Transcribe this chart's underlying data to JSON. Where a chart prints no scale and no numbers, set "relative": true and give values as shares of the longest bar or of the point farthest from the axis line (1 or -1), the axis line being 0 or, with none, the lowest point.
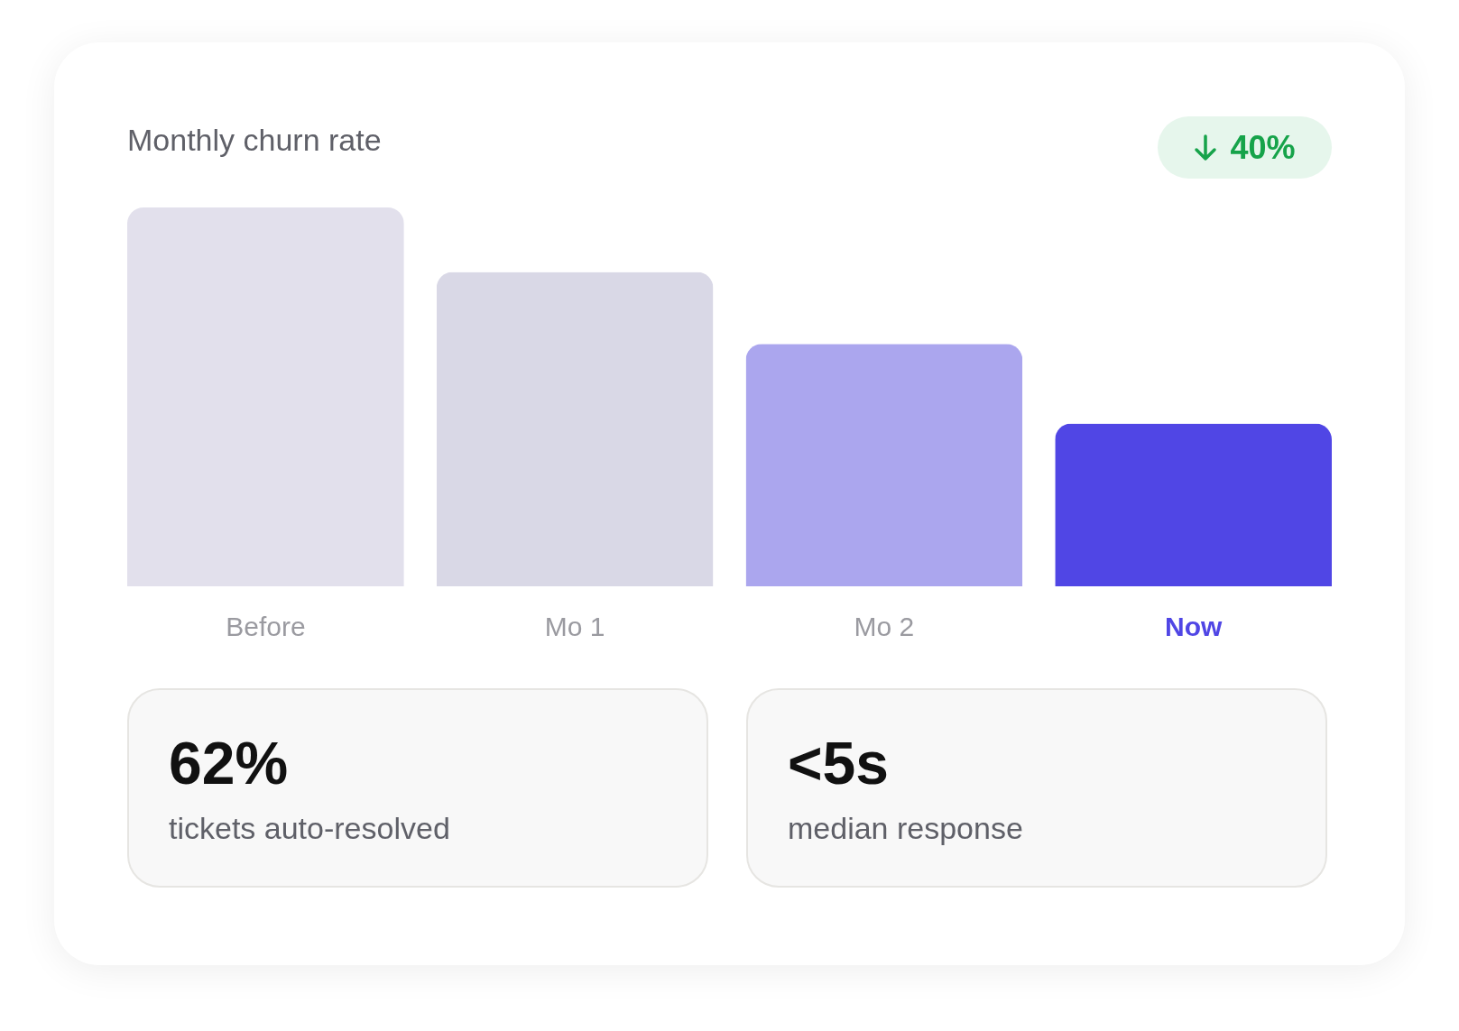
{
  "chart_data": [
    {
      "type": "bar",
      "title": "Monthly churn rate",
      "annotations": [
        "40%"
      ],
      "categories": [
        "Before",
        "Mo 1",
        "Mo 2",
        "Now"
      ],
      "values": [
        1,
        0.83,
        0.64,
        0.43
      ],
      "colors": [
        "#e2e0ec",
        "#d9d8e6",
        "#aba6ee",
        "#5046e5"
      ],
      "relative": true
    },
    {
      "type": "other",
      "annotations": [
        "62%",
        "tickets auto-resolved"
      ]
    },
    {
      "type": "other",
      "annotations": [
        "<5s",
        "median response"
      ]
    }
  ]
}
